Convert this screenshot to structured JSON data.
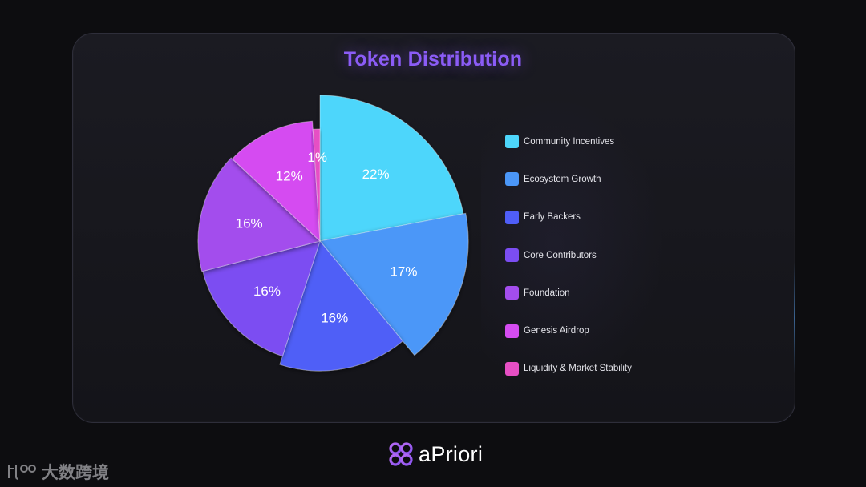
{
  "title": "Token Distribution",
  "chart_data": {
    "type": "pie",
    "title": "Token Distribution",
    "slices": [
      {
        "label": "Community Incentives",
        "value": 22,
        "display": "22%",
        "color": "#4dd6fb"
      },
      {
        "label": "Ecosystem Growth",
        "value": 17,
        "display": "17%",
        "color": "#4b97f8"
      },
      {
        "label": "Early Backers",
        "value": 16,
        "display": "16%",
        "color": "#4f5ef7"
      },
      {
        "label": "Core Contributors",
        "value": 16,
        "display": "16%",
        "color": "#7b4df2"
      },
      {
        "label": "Foundation",
        "value": 16,
        "display": "16%",
        "color": "#a34ded"
      },
      {
        "label": "Genesis Airdrop",
        "value": 12,
        "display": "12%",
        "color": "#d54cf1"
      },
      {
        "label": "Liquidity & Market Stability",
        "value": 1,
        "display": "1%",
        "color": "#e64fc4"
      }
    ],
    "legend_position": "right"
  },
  "brand": {
    "name": "aPriori",
    "icon": "quatrefoil-logo-icon"
  },
  "watermark": {
    "text": "大数跨境",
    "icon": "tbo-logo-icon"
  }
}
